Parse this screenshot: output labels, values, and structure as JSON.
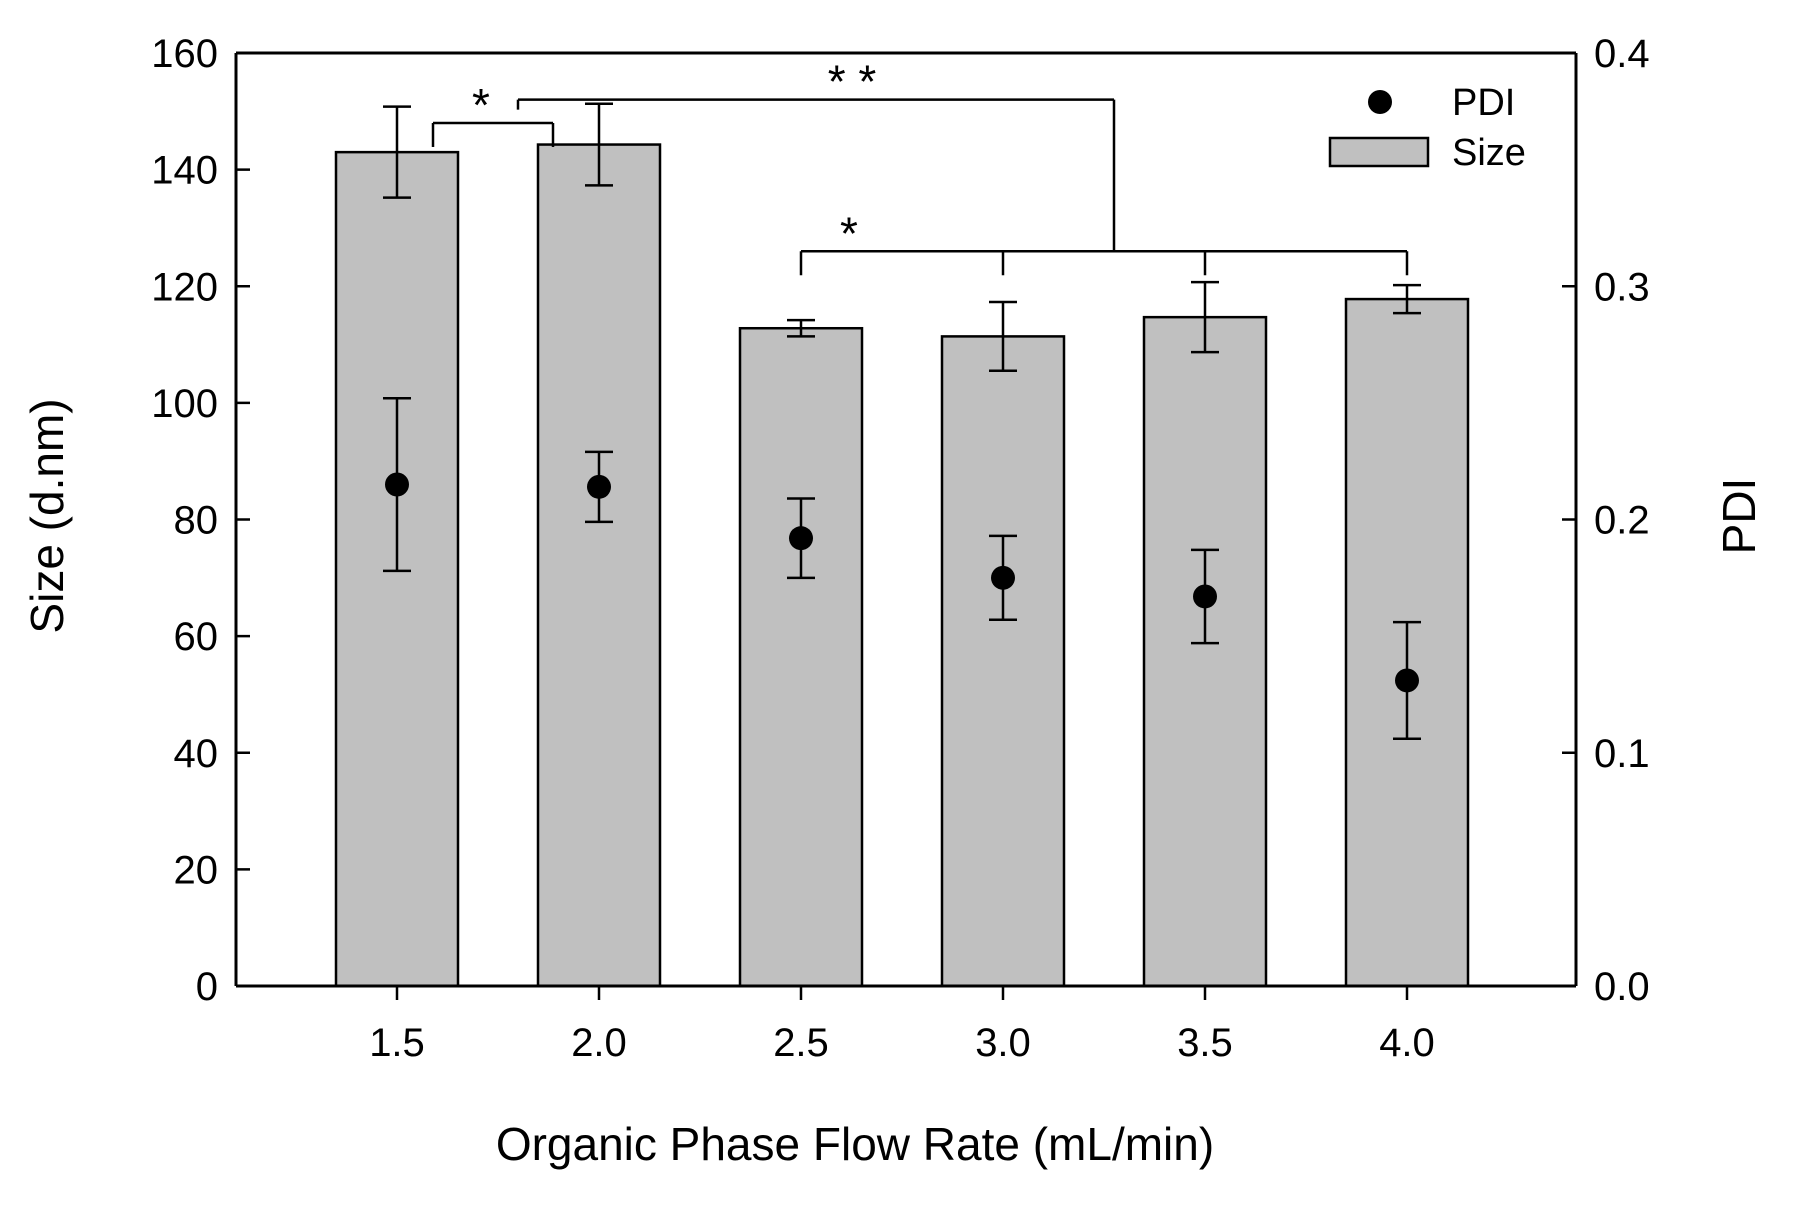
{
  "chart_data": {
    "type": "bar",
    "title": "",
    "xlabel": "Organic Phase Flow Rate (mL/min)",
    "ylabel": "Size (d.nm)",
    "y2label": "PDI",
    "categories": [
      "1.5",
      "2.0",
      "2.5",
      "3.0",
      "3.5",
      "4.0"
    ],
    "ylim": [
      0,
      160
    ],
    "y2lim": [
      0.0,
      0.4
    ],
    "yticks": [
      "0",
      "20",
      "40",
      "60",
      "80",
      "100",
      "120",
      "140",
      "160"
    ],
    "y2ticks": [
      "0.0",
      "0.1",
      "0.2",
      "0.3",
      "0.4"
    ],
    "grid": false,
    "legend_position": "top-right",
    "series": [
      {
        "name": "Size",
        "axis": "left",
        "kind": "bar",
        "color": "#c0c0c0",
        "values": [
          143,
          144.3,
          112.8,
          111.4,
          114.7,
          117.8
        ],
        "errors": [
          7.8,
          7.0,
          1.4,
          5.9,
          6.0,
          2.4
        ]
      },
      {
        "name": "PDI",
        "axis": "right",
        "kind": "scatter",
        "color": "#000000",
        "values": [
          0.215,
          0.214,
          0.192,
          0.175,
          0.167,
          0.131
        ],
        "errors": [
          0.037,
          0.015,
          0.017,
          0.018,
          0.02,
          0.025
        ]
      }
    ],
    "legend": [
      {
        "label": "PDI",
        "marker": "circle"
      },
      {
        "label": "Size",
        "marker": "bar"
      }
    ],
    "significance": [
      {
        "label": "*",
        "from": "1.5",
        "to": "2.0",
        "y": 148
      },
      {
        "label": "* *",
        "from_group": [
          "1.5",
          "2.0"
        ],
        "to_group": [
          "2.5",
          "3.0",
          "3.5",
          "4.0"
        ],
        "y": 152
      },
      {
        "label": "*",
        "from": "2.5",
        "to": "4.0",
        "y": 126
      }
    ]
  }
}
